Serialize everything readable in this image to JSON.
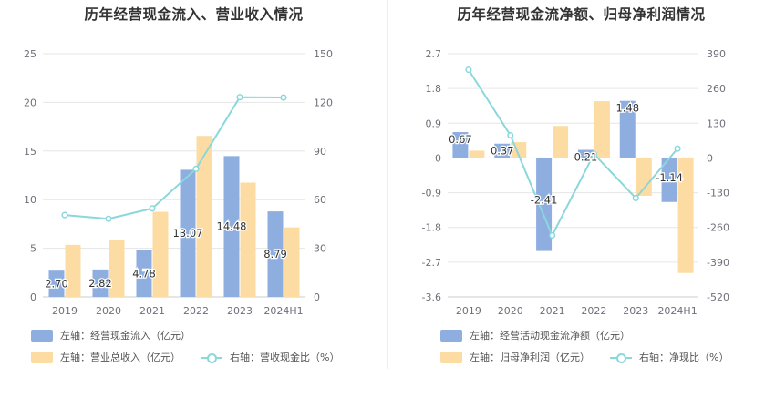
{
  "chart_data": [
    {
      "type": "bar",
      "title": "历年经营现金流入、营业收入情况",
      "categories": [
        "2019",
        "2020",
        "2021",
        "2022",
        "2023",
        "2024H1"
      ],
      "y_left": {
        "ylim": [
          0,
          25
        ],
        "ticks": [
          "0",
          "5",
          "10",
          "15",
          "20",
          "25"
        ]
      },
      "y_right": {
        "ylim": [
          0,
          150
        ],
        "ticks": [
          "0",
          "30",
          "60",
          "90",
          "120",
          "150"
        ]
      },
      "series": [
        {
          "name": "左轴：经营现金流入（亿元）",
          "type": "bar",
          "axis": "left",
          "color": "#8eaee0",
          "values": [
            2.7,
            2.82,
            4.78,
            13.07,
            14.48,
            8.79
          ],
          "labels": [
            "2.70",
            "2.82",
            "4.78",
            "13.07",
            "14.48",
            "8.79"
          ]
        },
        {
          "name": "左轴：营业总收入（亿元）",
          "type": "bar",
          "axis": "left",
          "color": "#fcdca3",
          "values": [
            5.35,
            5.85,
            8.75,
            16.55,
            11.75,
            7.15
          ]
        },
        {
          "name": "右轴：营收现金比（%）",
          "type": "line",
          "axis": "right",
          "color": "#8ad7dc",
          "values": [
            50.5,
            48.2,
            54.6,
            79.0,
            123.2,
            123.0
          ]
        }
      ],
      "grid": true,
      "legend": "bottom"
    },
    {
      "type": "bar",
      "title": "历年经营现金流净额、归母净利润情况",
      "categories": [
        "2019",
        "2020",
        "2021",
        "2022",
        "2023",
        "2024H1"
      ],
      "y_left": {
        "ylim": [
          -3.6,
          2.7
        ],
        "ticks": [
          "-3.6",
          "-2.7",
          "-1.8",
          "-0.9",
          "0",
          "0.9",
          "1.8",
          "2.7"
        ]
      },
      "y_right": {
        "ylim": [
          -520,
          390
        ],
        "ticks": [
          "-520",
          "-390",
          "-260",
          "-130",
          "0",
          "130",
          "260",
          "390"
        ]
      },
      "series": [
        {
          "name": "左轴：经营活动现金流净额（亿元）",
          "type": "bar",
          "axis": "left",
          "color": "#8eaee0",
          "values": [
            0.67,
            0.37,
            -2.41,
            0.21,
            1.48,
            -1.14
          ],
          "labels": [
            "0.67",
            "0.37",
            "-2.41",
            "0.21",
            "1.48",
            "-1.14"
          ]
        },
        {
          "name": "左轴：归母净利润（亿元）",
          "type": "bar",
          "axis": "left",
          "color": "#fcdca3",
          "values": [
            0.19,
            0.41,
            0.83,
            1.47,
            -0.98,
            -2.98
          ]
        },
        {
          "name": "右轴：净现比（%）",
          "type": "line",
          "axis": "right",
          "color": "#8ad7dc",
          "values": [
            330,
            85,
            -290,
            15,
            -150,
            35
          ]
        }
      ],
      "grid": true,
      "legend": "bottom"
    }
  ]
}
